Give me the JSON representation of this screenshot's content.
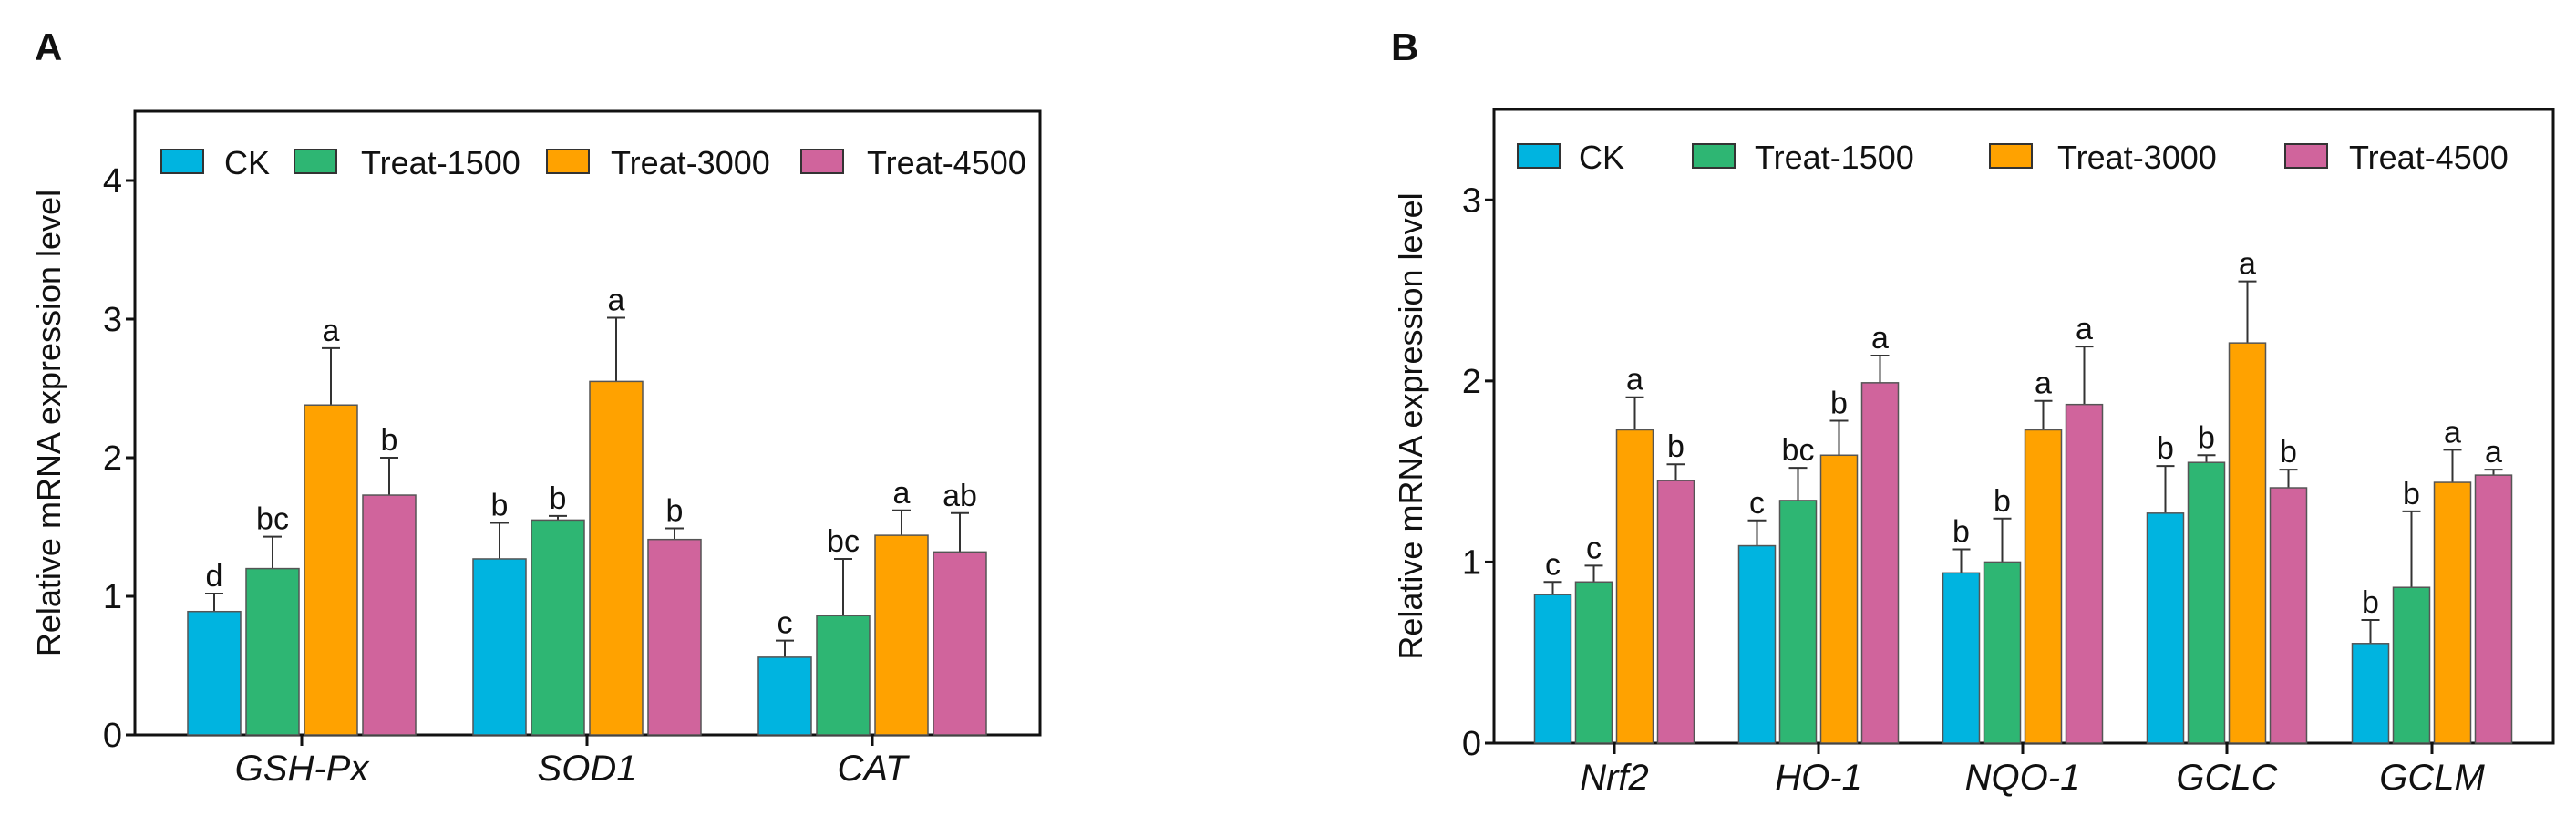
{
  "colors": {
    "CK": "#00B4E0",
    "Treat-1500": "#2EB673",
    "Treat-3000": "#FFA200",
    "Treat-4500": "#D0649C"
  },
  "chart_data": [
    {
      "panel": "A",
      "type": "bar",
      "ylabel": "Relative mRNA expression level",
      "ylim": [
        0,
        4.5
      ],
      "yticks": [
        0,
        1,
        2,
        3,
        4
      ],
      "legend": [
        "CK",
        "Treat-1500",
        "Treat-3000",
        "Treat-4500"
      ],
      "legend_position": "top",
      "categories": [
        "GSH-Px",
        "SOD1",
        "CAT"
      ],
      "series": [
        {
          "name": "CK",
          "values": [
            0.89,
            1.27,
            0.56
          ],
          "error_upper": [
            1.02,
            1.53,
            0.68
          ],
          "letters": [
            "d",
            "b",
            "c"
          ]
        },
        {
          "name": "Treat-1500",
          "values": [
            1.2,
            1.55,
            0.86
          ],
          "error_upper": [
            1.43,
            1.58,
            1.27
          ],
          "letters": [
            "bc",
            "b",
            "bc"
          ]
        },
        {
          "name": "Treat-3000",
          "values": [
            2.38,
            2.55,
            1.44
          ],
          "error_upper": [
            2.79,
            3.01,
            1.62
          ],
          "letters": [
            "a",
            "a",
            "a"
          ]
        },
        {
          "name": "Treat-4500",
          "values": [
            1.73,
            1.41,
            1.32
          ],
          "error_upper": [
            2.0,
            1.49,
            1.6
          ],
          "letters": [
            "b",
            "b",
            "ab"
          ]
        }
      ]
    },
    {
      "panel": "B",
      "type": "bar",
      "ylabel": "Relative mRNA expression level",
      "ylim": [
        0,
        3.5
      ],
      "yticks": [
        0,
        1,
        2,
        3
      ],
      "legend": [
        "CK",
        "Treat-1500",
        "Treat-3000",
        "Treat-4500"
      ],
      "legend_position": "top",
      "categories": [
        "Nrf2",
        "HO-1",
        "NQO-1",
        "GCLC",
        "GCLM"
      ],
      "series": [
        {
          "name": "CK",
          "values": [
            0.82,
            1.09,
            0.94,
            1.27,
            0.55
          ],
          "error_upper": [
            0.89,
            1.23,
            1.07,
            1.53,
            0.68
          ],
          "letters": [
            "c",
            "c",
            "b",
            "b",
            "b"
          ]
        },
        {
          "name": "Treat-1500",
          "values": [
            0.89,
            1.34,
            1.0,
            1.55,
            0.86
          ],
          "error_upper": [
            0.98,
            1.52,
            1.24,
            1.59,
            1.28
          ],
          "letters": [
            "c",
            "bc",
            "b",
            "b",
            "b"
          ]
        },
        {
          "name": "Treat-3000",
          "values": [
            1.73,
            1.59,
            1.73,
            2.21,
            1.44
          ],
          "error_upper": [
            1.91,
            1.78,
            1.89,
            2.55,
            1.62
          ],
          "letters": [
            "a",
            "b",
            "a",
            "a",
            "a"
          ]
        },
        {
          "name": "Treat-4500",
          "values": [
            1.45,
            1.99,
            1.87,
            1.41,
            1.48
          ],
          "error_upper": [
            1.54,
            2.14,
            2.19,
            1.51,
            1.51
          ],
          "letters": [
            "b",
            "a",
            "a",
            "b",
            "a"
          ]
        }
      ]
    }
  ]
}
